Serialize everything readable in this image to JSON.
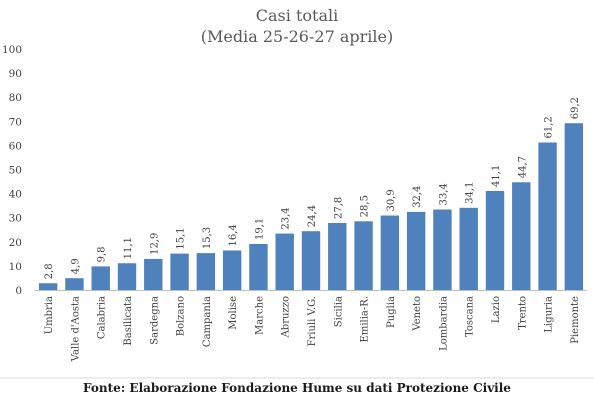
{
  "chart_data": {
    "type": "bar",
    "title": "Casi totali",
    "subtitle": "(Media 25-26-27 aprile)",
    "categories": [
      "Umbria",
      "Valle d'Aosta",
      "Calabria",
      "Basilicata",
      "Sardegna",
      "Bolzano",
      "Campania",
      "Molise",
      "Marche",
      "Abruzzo",
      "Friuli V.G.",
      "Sicilia",
      "Emilia-R.",
      "Puglia",
      "Veneto",
      "Lombardia",
      "Toscana",
      "Lazio",
      "Trento",
      "Liguria",
      "Piemonte"
    ],
    "values": [
      2.8,
      4.9,
      9.8,
      11.1,
      12.9,
      15.1,
      15.3,
      16.4,
      19.1,
      23.4,
      24.4,
      27.8,
      28.5,
      30.9,
      32.4,
      33.4,
      34.1,
      41.1,
      44.7,
      61.2,
      69.2
    ],
    "data_labels": [
      "2,8",
      "4,9",
      "9,8",
      "11,1",
      "12,9",
      "15,1",
      "15,3",
      "16,4",
      "19,1",
      "23,4",
      "24,4",
      "27,8",
      "28,5",
      "30,9",
      "32,4",
      "33,4",
      "34,1",
      "41,1",
      "44,7",
      "61,2",
      "69,2"
    ],
    "ylim": [
      0,
      100
    ],
    "yticks": [
      0,
      10,
      20,
      30,
      40,
      50,
      60,
      70,
      80,
      90,
      100
    ],
    "grid": false,
    "legend": "none",
    "bar_color": "#4F81BD",
    "source": "Fonte: Elaborazione Fondazione Hume su dati Protezione Civile"
  }
}
